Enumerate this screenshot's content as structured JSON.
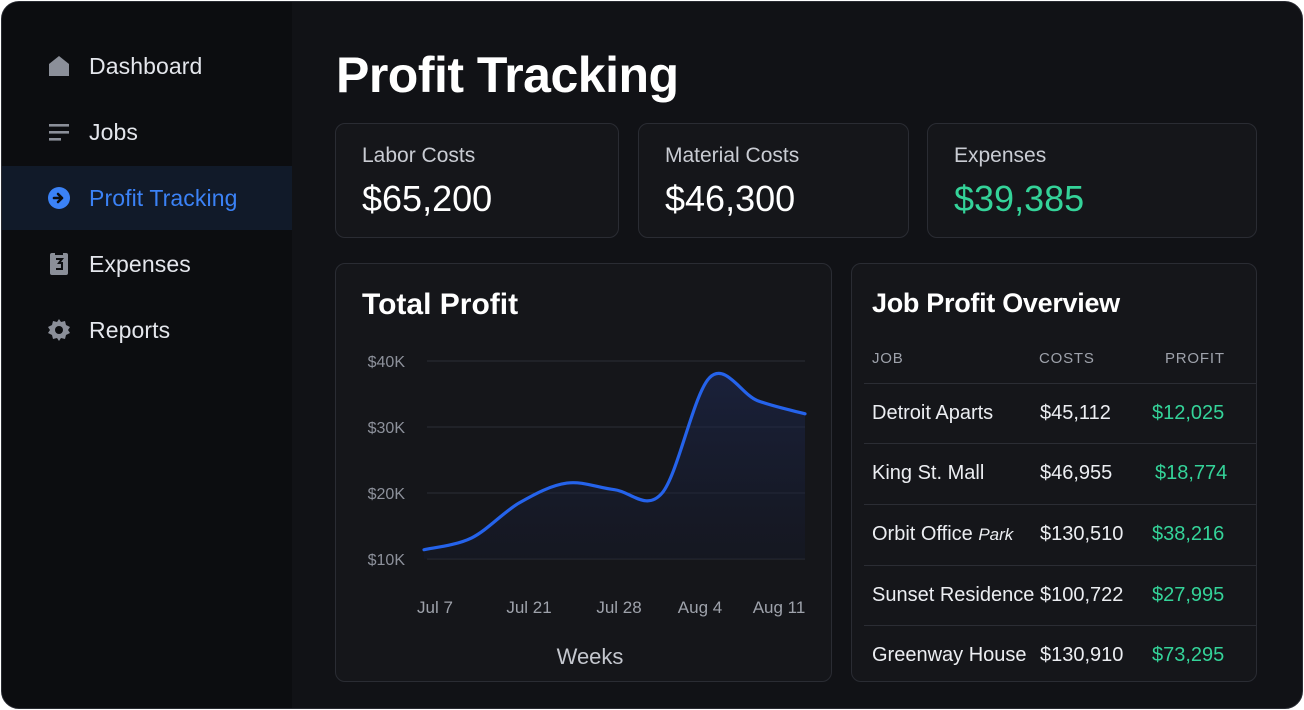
{
  "sidebar": {
    "items": [
      {
        "label": "Dashboard",
        "icon": "home-icon"
      },
      {
        "label": "Jobs",
        "icon": "list-icon"
      },
      {
        "label": "Profit Tracking",
        "icon": "arrow-circle-icon",
        "active": true
      },
      {
        "label": "Expenses",
        "icon": "receipt-icon"
      },
      {
        "label": "Reports",
        "icon": "gear-icon"
      }
    ]
  },
  "header": {
    "title": "Profit Tracking"
  },
  "stats": [
    {
      "label": "Labor Costs",
      "value": "$65,200"
    },
    {
      "label": "Material Costs",
      "value": "$46,300"
    },
    {
      "label": "Expenses",
      "value": "$39,385"
    }
  ],
  "chart_data": {
    "type": "line",
    "title": "Total Profit",
    "xlabel": "Weeks",
    "ylabel": "",
    "ylim": [
      10000,
      40000
    ],
    "y_ticks": [
      {
        "value": 40000,
        "label": "$40K"
      },
      {
        "value": 30000,
        "label": "$30K"
      },
      {
        "value": 20000,
        "label": "$20K"
      },
      {
        "value": 10000,
        "label": "$10K"
      }
    ],
    "x_labels": [
      "Jul 7",
      "Jul 21",
      "Jul 28",
      "Aug 4",
      "Aug 11"
    ],
    "points": [
      {
        "x": 0,
        "y": 11400
      },
      {
        "x": 0.5,
        "y": 13200
      },
      {
        "x": 1.0,
        "y": 18500
      },
      {
        "x": 1.5,
        "y": 21500
      },
      {
        "x": 2.0,
        "y": 20500
      },
      {
        "x": 2.5,
        "y": 20000
      },
      {
        "x": 3.0,
        "y": 37500
      },
      {
        "x": 3.5,
        "y": 34000
      },
      {
        "x": 4.0,
        "y": 32000
      }
    ]
  },
  "jobs_table": {
    "title": "Job Profit Overview",
    "columns": [
      "JOB",
      "COSTS",
      "PROFIT"
    ],
    "rows": [
      {
        "job": "Detroit Aparts",
        "job_suffix": "",
        "costs": "$45,112",
        "profit": "$12,025"
      },
      {
        "job": "King St. Mall",
        "job_suffix": "",
        "costs": "$46,955",
        "profit": "$18,774"
      },
      {
        "job": "Orbit Office",
        "job_suffix": "Park",
        "costs": "$130,510",
        "profit": "$38,216"
      },
      {
        "job": "Sunset Residence",
        "job_suffix": "",
        "costs": "$100,722",
        "profit": "$27,995"
      },
      {
        "job": "Greenway House",
        "job_suffix": "",
        "costs": "$130,910",
        "profit": "$73,295"
      }
    ]
  },
  "colors": {
    "accent": "#3b82f6",
    "positive": "#34d399",
    "background": "#111216",
    "sidebar": "#0c0d10",
    "line": "#2563eb"
  }
}
